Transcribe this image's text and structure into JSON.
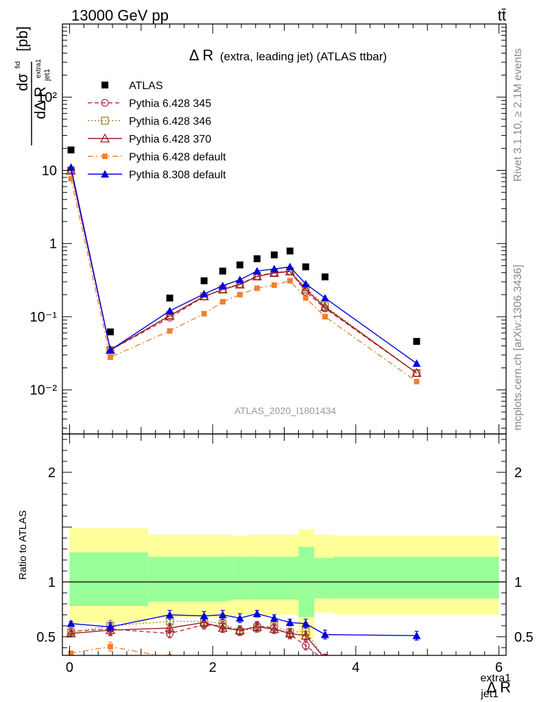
{
  "header": {
    "left": "13000 GeV pp",
    "right": "tt̄"
  },
  "side_labels": {
    "rivet": "Rivet 3.1.10, ≥ 2.1M events",
    "mcplots": "mcplots.cern.ch [arXiv:1306.3436]"
  },
  "watermark": "ATLAS_2020_I1801434",
  "colors": {
    "ATLAS": "#000000",
    "p345": "#b03050",
    "p346": "#a08030",
    "p370": "#9a1a1a",
    "p6def": "#f08030",
    "p8def": "#0000dd",
    "band_outer": "#ffff99",
    "band_inner": "#99ff99"
  },
  "chart_data": [
    {
      "type": "scatter",
      "panel": "main",
      "title": "Δ R (extra, leading jet) (ATLAS ttbar)",
      "title_main": "Δ R",
      "title_rest": "(extra, leading jet) (ATLAS ttbar)",
      "ylabel": "dσ^fid / dΔ R_jet1^extra1 [pb]",
      "yscale": "log",
      "ylim": [
        0.0025,
        1000
      ],
      "xlim": [
        -0.1,
        6.1
      ],
      "ytick_labels": [
        "10⁻²",
        "10⁻¹",
        "1",
        "10",
        "10²"
      ],
      "ytick_values": [
        0.01,
        0.1,
        1,
        10,
        100
      ],
      "legend_position": "top-left",
      "series": [
        {
          "name": "ATLAS",
          "key": "ATLAS",
          "style": "data",
          "x": [
            0.02,
            0.57,
            1.4,
            1.88,
            2.14,
            2.38,
            2.62,
            2.86,
            3.08,
            3.3,
            3.57,
            4.85
          ],
          "y": [
            19,
            0.062,
            0.18,
            0.31,
            0.42,
            0.51,
            0.62,
            0.7,
            0.79,
            0.48,
            0.35,
            0.046
          ]
        },
        {
          "name": "Pythia 6.428 345",
          "key": "p345",
          "style": "circle-dashed",
          "x": [
            0.02,
            0.57,
            1.4,
            1.88,
            2.14,
            2.38,
            2.62,
            2.86,
            3.08,
            3.3,
            3.57,
            4.85
          ],
          "y": [
            10.2,
            0.035,
            0.097,
            0.188,
            0.235,
            0.28,
            0.36,
            0.4,
            0.42,
            0.22,
            0.13,
            0.017
          ]
        },
        {
          "name": "Pythia 6.428 346",
          "key": "p346",
          "style": "square-dotted",
          "x": [
            0.02,
            0.57,
            1.4,
            1.88,
            2.14,
            2.38,
            2.62,
            2.86,
            3.08,
            3.3,
            3.57,
            4.85
          ],
          "y": [
            10.0,
            0.035,
            0.105,
            0.19,
            0.24,
            0.28,
            0.36,
            0.4,
            0.42,
            0.25,
            0.14,
            0.017
          ]
        },
        {
          "name": "Pythia 6.428 370",
          "key": "p370",
          "style": "triangle-open-solid",
          "x": [
            0.02,
            0.57,
            1.4,
            1.88,
            2.14,
            2.38,
            2.62,
            2.86,
            3.08,
            3.3,
            3.57,
            4.85
          ],
          "y": [
            9.9,
            0.035,
            0.103,
            0.19,
            0.235,
            0.275,
            0.355,
            0.395,
            0.415,
            0.235,
            0.135,
            0.017
          ]
        },
        {
          "name": "Pythia 6.428 default",
          "key": "p6def",
          "style": "square-filled-dashdot",
          "x": [
            0.02,
            0.57,
            1.4,
            1.88,
            2.14,
            2.38,
            2.62,
            2.86,
            3.08,
            3.3,
            3.57,
            4.85
          ],
          "y": [
            7.7,
            0.028,
            0.064,
            0.11,
            0.16,
            0.2,
            0.245,
            0.27,
            0.31,
            0.18,
            0.1,
            0.013
          ]
        },
        {
          "name": "Pythia 8.308 default",
          "key": "p8def",
          "style": "triangle-filled-solid",
          "x": [
            0.02,
            0.57,
            1.4,
            1.88,
            2.14,
            2.38,
            2.62,
            2.86,
            3.08,
            3.3,
            3.57,
            4.85
          ],
          "y": [
            11.0,
            0.035,
            0.12,
            0.205,
            0.265,
            0.32,
            0.42,
            0.45,
            0.48,
            0.28,
            0.18,
            0.023
          ]
        }
      ]
    },
    {
      "type": "scatter",
      "panel": "ratio",
      "ylabel": "Ratio to ATLAS",
      "xlabel": "Δ R_jet1^extra1",
      "xlabel_main": "Δ R",
      "xlabel_sup": "extra1",
      "xlabel_sub": "jet1",
      "ylim": [
        0.33,
        2.35
      ],
      "xlim": [
        -0.1,
        6.1
      ],
      "xtick_labels": [
        "0",
        "2",
        "4",
        "6"
      ],
      "xtick_values": [
        0,
        2,
        4,
        6
      ],
      "ytick_labels": [
        "0.5",
        "1",
        "2"
      ],
      "ytick_values": [
        0.5,
        1,
        2
      ],
      "bands": [
        {
          "x0": 0.0,
          "x1": 1.1,
          "outer": [
            0.63,
            1.49
          ],
          "inner": [
            0.78,
            1.27
          ]
        },
        {
          "x0": 1.1,
          "x1": 2.2,
          "outer": [
            0.68,
            1.43
          ],
          "inner": [
            0.82,
            1.23
          ]
        },
        {
          "x0": 2.2,
          "x1": 2.27,
          "outer": [
            0.68,
            1.43
          ],
          "inner": [
            0.83,
            1.23
          ]
        },
        {
          "x0": 2.27,
          "x1": 2.5,
          "outer": [
            0.7,
            1.42
          ],
          "inner": [
            0.84,
            1.23
          ]
        },
        {
          "x0": 2.5,
          "x1": 3.2,
          "outer": [
            0.7,
            1.43
          ],
          "inner": [
            0.84,
            1.23
          ]
        },
        {
          "x0": 3.2,
          "x1": 3.42,
          "outer": [
            0.48,
            1.48
          ],
          "inner": [
            0.68,
            1.32
          ]
        },
        {
          "x0": 3.42,
          "x1": 3.7,
          "outer": [
            0.72,
            1.43
          ],
          "inner": [
            0.85,
            1.22
          ]
        },
        {
          "x0": 3.7,
          "x1": 6.0,
          "outer": [
            0.7,
            1.42
          ],
          "inner": [
            0.85,
            1.23
          ]
        }
      ],
      "series": [
        {
          "name": "Pythia 6.428 345",
          "key": "p345",
          "style": "circle-dashed",
          "x": [
            0.02,
            0.57,
            1.4,
            1.88,
            2.14,
            2.38,
            2.62,
            2.86,
            3.08,
            3.3,
            3.57
          ],
          "y": [
            0.55,
            0.57,
            0.53,
            0.61,
            0.6,
            0.55,
            0.6,
            0.58,
            0.52,
            0.42,
            0.28
          ],
          "err": [
            0.02,
            0.05,
            0.04,
            0.04,
            0.04,
            0.04,
            0.04,
            0.04,
            0.04,
            0.04,
            0.04
          ]
        },
        {
          "name": "Pythia 6.428 346",
          "key": "p346",
          "style": "square-dotted",
          "x": [
            0.02,
            0.57,
            1.4,
            1.88,
            2.14,
            2.38,
            2.62,
            2.86,
            3.08,
            3.3,
            3.57
          ],
          "y": [
            0.54,
            0.6,
            0.64,
            0.64,
            0.62,
            0.55,
            0.58,
            0.6,
            0.54,
            0.55,
            0.3
          ],
          "err": [
            0.02,
            0.05,
            0.04,
            0.04,
            0.04,
            0.04,
            0.04,
            0.04,
            0.04,
            0.04,
            0.04
          ]
        },
        {
          "name": "Pythia 6.428 370",
          "key": "p370",
          "style": "triangle-open-solid",
          "x": [
            0.02,
            0.57,
            1.4,
            1.88,
            2.14,
            2.38,
            2.62,
            2.86,
            3.08,
            3.3,
            3.57
          ],
          "y": [
            0.53,
            0.56,
            0.58,
            0.63,
            0.58,
            0.56,
            0.59,
            0.57,
            0.53,
            0.51,
            0.3
          ],
          "err": [
            0.02,
            0.05,
            0.04,
            0.04,
            0.04,
            0.04,
            0.04,
            0.04,
            0.04,
            0.04,
            0.04
          ]
        },
        {
          "name": "Pythia 6.428 default",
          "key": "p6def",
          "style": "square-filled-dashdot",
          "x": [
            0.02,
            0.57,
            1.4
          ],
          "y": [
            0.35,
            0.41,
            0.31
          ],
          "err": [
            0.02,
            0.04,
            0.03
          ]
        },
        {
          "name": "Pythia 8.308 default",
          "key": "p8def",
          "style": "triangle-filled-solid",
          "x": [
            0.02,
            0.57,
            1.4,
            1.88,
            2.14,
            2.38,
            2.62,
            2.86,
            3.08,
            3.3,
            3.57,
            4.85
          ],
          "y": [
            0.62,
            0.59,
            0.7,
            0.69,
            0.7,
            0.67,
            0.71,
            0.67,
            0.63,
            0.62,
            0.52,
            0.51
          ],
          "err": [
            0.02,
            0.04,
            0.04,
            0.04,
            0.04,
            0.04,
            0.03,
            0.03,
            0.03,
            0.04,
            0.04,
            0.04
          ]
        }
      ]
    }
  ]
}
